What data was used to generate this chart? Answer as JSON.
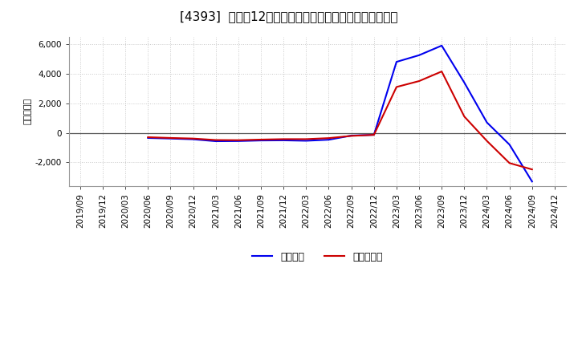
{
  "title": "[4393]  利益だ12か月移動合計の対前年同期増減額の推移",
  "ylabel": "（百万円）",
  "ylim": [
    -3600,
    6500
  ],
  "yticks": [
    -2000,
    0,
    2000,
    4000,
    6000
  ],
  "background_color": "#ffffff",
  "plot_bg_color": "#ffffff",
  "grid_color": "#c8c8c8",
  "x_labels": [
    "2019/09",
    "2019/12",
    "2020/03",
    "2020/06",
    "2020/09",
    "2020/12",
    "2021/03",
    "2021/06",
    "2021/09",
    "2021/12",
    "2022/03",
    "2022/06",
    "2022/09",
    "2022/12",
    "2023/03",
    "2023/06",
    "2023/09",
    "2023/12",
    "2024/03",
    "2024/06",
    "2024/09",
    "2024/12"
  ],
  "keijo": [
    null,
    null,
    null,
    -350,
    -390,
    -440,
    -570,
    -560,
    -520,
    -510,
    -540,
    -470,
    -190,
    -140,
    4800,
    5250,
    5900,
    3400,
    700,
    -800,
    -3300,
    null
  ],
  "touki": [
    null,
    null,
    null,
    -300,
    -350,
    -390,
    -490,
    -500,
    -460,
    -430,
    -430,
    -360,
    -210,
    -140,
    3100,
    3500,
    4150,
    1100,
    -550,
    -2050,
    -2480,
    null
  ],
  "line_color_keijo": "#0000ee",
  "line_color_touki": "#cc0000",
  "line_width": 1.5,
  "legend_keijo": "経常利益",
  "legend_touki": "当期純利益",
  "title_fontsize": 11,
  "axis_fontsize": 7.5,
  "ylabel_fontsize": 8
}
